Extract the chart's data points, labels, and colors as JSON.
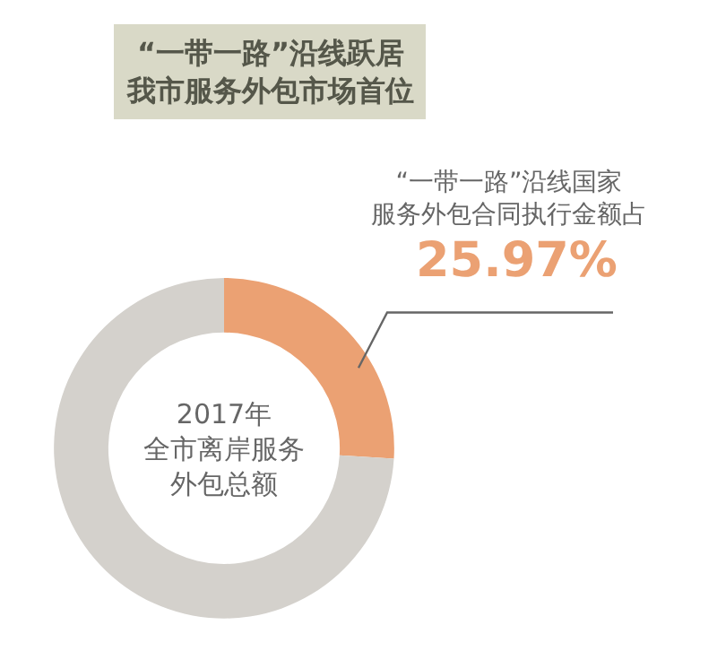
{
  "chart_data": {
    "type": "donut",
    "title": "“一带一路”沿线跃居我市服务外包市场首位",
    "categories": [
      "“一带一路”沿线国家服务外包合同执行金额占",
      null
    ],
    "values": [
      25.97,
      74.03
    ],
    "value_labels": [
      "25.97%",
      null
    ],
    "colors": [
      "#eba173",
      "#d4d1cc"
    ],
    "annotations": [
      "2017年全市离岸服务外包总额"
    ],
    "legend": false
  }
}
